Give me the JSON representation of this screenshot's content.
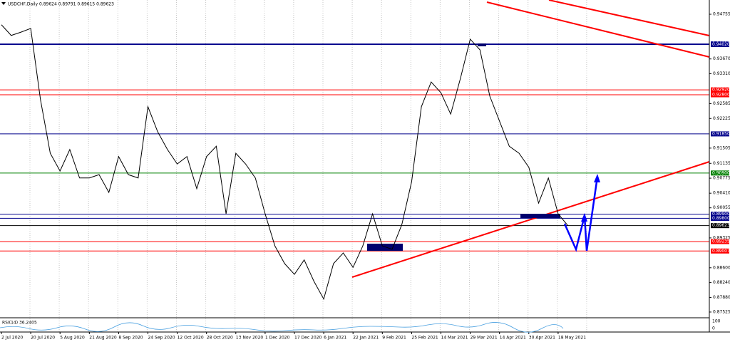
{
  "chart_data": {
    "type": "line",
    "title": "USDCHF,Daily 0.89624 0.89791 0.89615 0.89623",
    "categories": [
      "2 Jul 2020",
      null,
      null,
      "20 Jul 2020",
      null,
      null,
      "5 Aug 2020",
      null,
      null,
      "21 Aug 2020",
      null,
      null,
      "8 Sep 2020",
      null,
      null,
      "24 Sep 2020",
      null,
      null,
      "12 Oct 2020",
      null,
      null,
      "28 Oct 2020",
      null,
      null,
      "13 Nov 2020",
      null,
      null,
      "1 Dec 2020",
      null,
      null,
      "17 Dec 2020",
      null,
      null,
      "6 Jan 2021",
      null,
      null,
      "22 Jan 2021",
      null,
      null,
      "9 Feb 2021",
      null,
      null,
      "25 Feb 2021",
      null,
      null,
      "14 Mar 2021",
      null,
      null,
      "29 Mar 2021",
      null,
      null,
      "14 Apr 2021",
      null,
      null,
      "30 Apr 2021",
      null,
      null,
      "18 May 2021",
      null
    ],
    "series": [
      {
        "name": "USDCHF",
        "color": "#000000",
        "values": [
          0.945,
          0.9424,
          0.9432,
          0.9441,
          0.9268,
          0.9138,
          0.9095,
          0.9147,
          0.9078,
          0.9078,
          0.9086,
          0.9043,
          0.913,
          0.9086,
          0.9078,
          0.9251,
          0.919,
          0.9147,
          0.9112,
          0.913,
          0.9052,
          0.913,
          0.9155,
          0.8991,
          0.9138,
          0.9112,
          0.9078,
          0.8991,
          0.8913,
          0.887,
          0.8844,
          0.8879,
          0.8827,
          0.8784,
          0.887,
          0.8896,
          0.8861,
          0.8913,
          0.8991,
          0.8913,
          0.8905,
          0.8965,
          0.9069,
          0.9251,
          0.9311,
          0.9285,
          0.9233,
          0.932,
          0.9415,
          0.9389,
          0.9277,
          0.9216,
          0.9155,
          0.9138,
          0.9104,
          0.9017,
          0.9078,
          0.8991,
          0.89623
        ]
      }
    ],
    "ylim": [
      0.87403,
      0.95101
    ],
    "yticks": [
      {
        "value": 0.94755,
        "label": "0.94755"
      },
      {
        "value": 0.9367,
        "label": "0.93670"
      },
      {
        "value": 0.9331,
        "label": "0.93310"
      },
      {
        "value": 0.92585,
        "label": "0.92585"
      },
      {
        "value": 0.92225,
        "label": "0.92225"
      },
      {
        "value": 0.91505,
        "label": "0.91505"
      },
      {
        "value": 0.91135,
        "label": "0.91135"
      },
      {
        "value": 0.90775,
        "label": "0.90775"
      },
      {
        "value": 0.9041,
        "label": "0.90410"
      },
      {
        "value": 0.90055,
        "label": "0.90055"
      },
      {
        "value": 0.89325,
        "label": "0.89325"
      },
      {
        "value": 0.886,
        "label": "0.88600"
      },
      {
        "value": 0.8824,
        "label": "0.88240"
      },
      {
        "value": 0.8788,
        "label": "0.87880"
      },
      {
        "value": 0.87525,
        "label": "0.87525"
      }
    ],
    "levels": [
      {
        "value": 0.94035,
        "label": "0.94035",
        "color": "#00008b"
      },
      {
        "value": 0.9402,
        "label": "0.94020",
        "color": "#00008b"
      },
      {
        "value": 0.9292,
        "label": "0.92920",
        "color": "#ff0000"
      },
      {
        "value": 0.928,
        "label": "0.92800",
        "color": "#ff0000"
      },
      {
        "value": 0.9185,
        "label": "0.91850",
        "color": "#00008b"
      },
      {
        "value": 0.909,
        "label": "0.90900",
        "color": "#008000"
      },
      {
        "value": 0.899,
        "label": "0.89900",
        "color": "#00008b"
      },
      {
        "value": 0.898,
        "label": "0.89800",
        "color": "#00008b"
      },
      {
        "value": 0.89623,
        "label": "0.89623",
        "color": "#000000"
      },
      {
        "value": 0.89235,
        "label": "0.89235",
        "color": "#ff0000"
      },
      {
        "value": 0.89007,
        "label": "0.89007",
        "color": "#ff0000"
      }
    ],
    "rsi": {
      "title": "RSI(14) 36.2405",
      "axis": [
        "100",
        "0"
      ]
    }
  }
}
